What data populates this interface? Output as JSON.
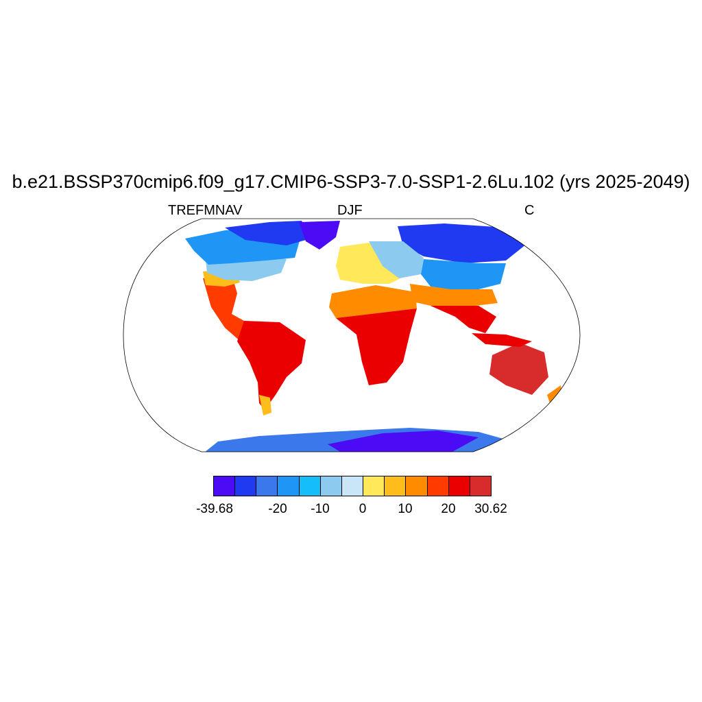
{
  "title": "b.e21.BSSP370cmip6.f09_g17.CMIP6-SSP3-7.0-SSP1-2.6Lu.102 (yrs 2025-2049)",
  "left_label": "TREFMNAV",
  "center_label": "DJF",
  "right_label": "C",
  "colorbar": {
    "colors": [
      "#4b0cf5",
      "#1f3af0",
      "#3a78eb",
      "#1f96f5",
      "#15bef8",
      "#8ccbef",
      "#c8e6f8",
      "#ffe95a",
      "#ffbd1c",
      "#ff8b00",
      "#ff3b00",
      "#ea0000",
      "#d82c2c"
    ],
    "tick_labels": [
      "-39.68",
      "-20",
      "-10",
      "0",
      "10",
      "20",
      "30.62"
    ]
  }
}
